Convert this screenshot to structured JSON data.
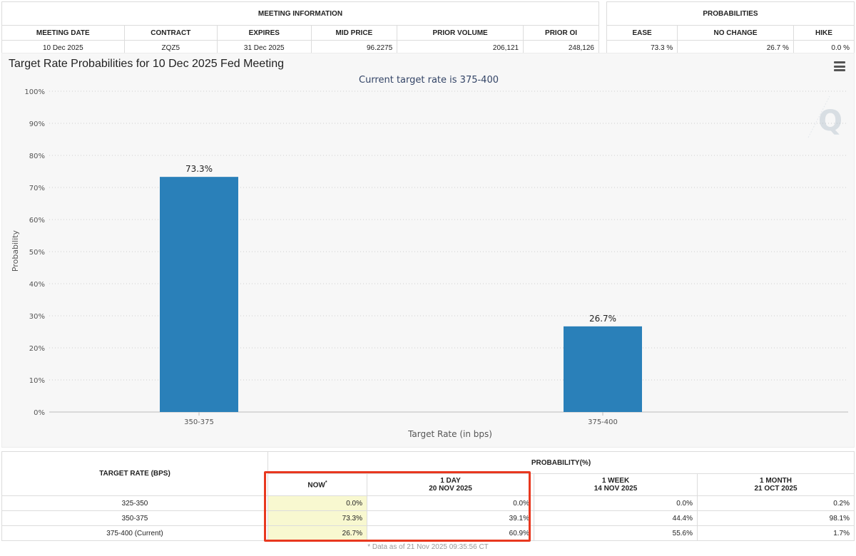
{
  "meeting_info": {
    "title": "MEETING INFORMATION",
    "headers": [
      "MEETING DATE",
      "CONTRACT",
      "EXPIRES",
      "MID PRICE",
      "PRIOR VOLUME",
      "PRIOR OI"
    ],
    "values": [
      "10 Dec 2025",
      "ZQZ5",
      "31 Dec 2025",
      "96.2275",
      "206,121",
      "248,126"
    ]
  },
  "probabilities": {
    "title": "PROBABILITIES",
    "headers": [
      "EASE",
      "NO CHANGE",
      "HIKE"
    ],
    "values": [
      "73.3 %",
      "26.7 %",
      "0.0 %"
    ]
  },
  "chart_data": {
    "type": "bar",
    "title": "Target Rate Probabilities for 10 Dec 2025 Fed Meeting",
    "subtitle": "Current target rate is 375-400",
    "xlabel": "Target Rate (in bps)",
    "ylabel": "Probability",
    "categories": [
      "350-375",
      "375-400"
    ],
    "values": [
      73.3,
      26.7
    ],
    "data_labels": [
      "73.3%",
      "26.7%"
    ],
    "ylim": [
      0,
      100
    ],
    "yticks": [
      0,
      10,
      20,
      30,
      40,
      50,
      60,
      70,
      80,
      90,
      100
    ],
    "ytick_suffix": "%",
    "bar_color": "#2a80b9",
    "grid": true,
    "grid_style": "dotted horizontal"
  },
  "target_table": {
    "col_header": "TARGET RATE (BPS)",
    "group_header": "PROBABILITY(%)",
    "now_label": "NOW",
    "now_marker": "*",
    "period_headers": [
      {
        "line1": "1 DAY",
        "line2": "20 NOV 2025"
      },
      {
        "line1": "1 WEEK",
        "line2": "14 NOV 2025"
      },
      {
        "line1": "1 MONTH",
        "line2": "21 OCT 2025"
      }
    ],
    "rows": [
      {
        "rate": "325-350",
        "now": "0.0%",
        "day": "0.0%",
        "week": "0.0%",
        "month": "0.2%"
      },
      {
        "rate": "350-375",
        "now": "73.3%",
        "day": "39.1%",
        "week": "44.4%",
        "month": "98.1%"
      },
      {
        "rate": "375-400 (Current)",
        "now": "26.7%",
        "day": "60.9%",
        "week": "55.6%",
        "month": "1.7%"
      }
    ],
    "footnote": "* Data as of 21 Nov 2025 09:35:56 CT"
  },
  "colors": {
    "highlight": "#e8381f",
    "now_column": "#f8f8d0"
  },
  "icons": {
    "menu": "hamburger-menu-icon",
    "watermark": "q-watermark-icon"
  }
}
